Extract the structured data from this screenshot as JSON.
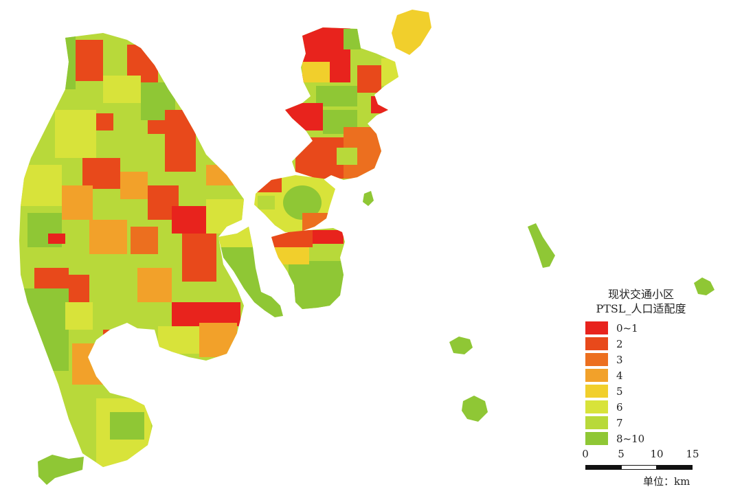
{
  "legend": {
    "title_line1": "现状交通小区",
    "title_line2": "PTSL_人口适配度",
    "items": [
      {
        "label": "0~1",
        "color": "#e8231d"
      },
      {
        "label": "2",
        "color": "#e8491b"
      },
      {
        "label": "3",
        "color": "#ec6f1f"
      },
      {
        "label": "4",
        "color": "#f2a12a"
      },
      {
        "label": "5",
        "color": "#f1cf2c"
      },
      {
        "label": "6",
        "color": "#d8e33a"
      },
      {
        "label": "7",
        "color": "#b8d93a"
      },
      {
        "label": "8~10",
        "color": "#8fc735"
      }
    ]
  },
  "scale": {
    "ticks": [
      "0",
      "5",
      "10",
      "15"
    ],
    "unit": "单位：km"
  }
}
